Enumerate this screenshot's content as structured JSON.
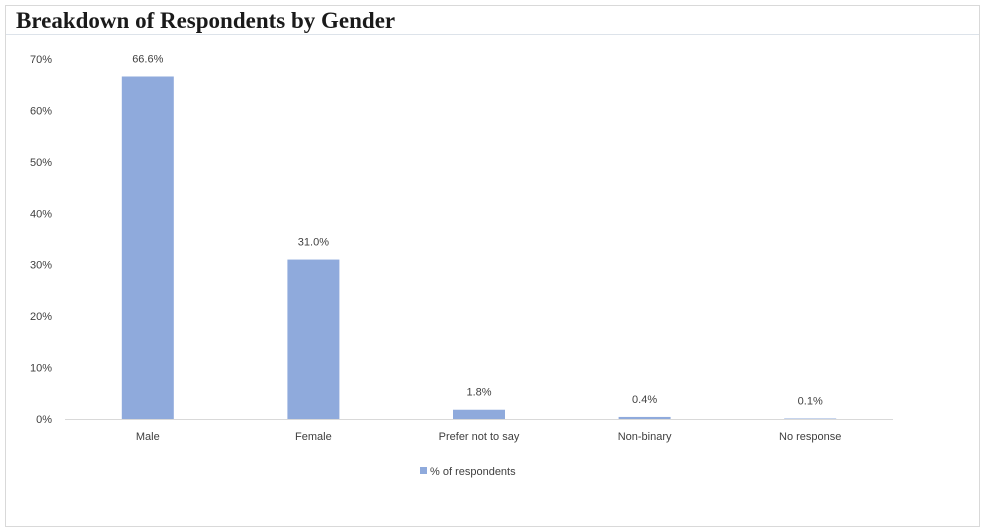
{
  "chart_data": {
    "type": "bar",
    "title": "Breakdown of Respondents by Gender",
    "categories": [
      "Male",
      "Female",
      "Prefer not to say",
      "Non-binary",
      "No response"
    ],
    "series": [
      {
        "name": "% of respondents",
        "values": [
          66.6,
          31.0,
          1.8,
          0.4,
          0.1
        ],
        "color": "#8faadc"
      }
    ],
    "data_labels": [
      "66.6%",
      "31.0%",
      "1.8%",
      "0.4%",
      "0.1%"
    ],
    "yticks": [
      "0%",
      "10%",
      "20%",
      "30%",
      "40%",
      "50%",
      "60%",
      "70%"
    ],
    "ylim": [
      0,
      70
    ],
    "xlabel": "",
    "ylabel": "",
    "grid": false,
    "legend": "bottom"
  }
}
